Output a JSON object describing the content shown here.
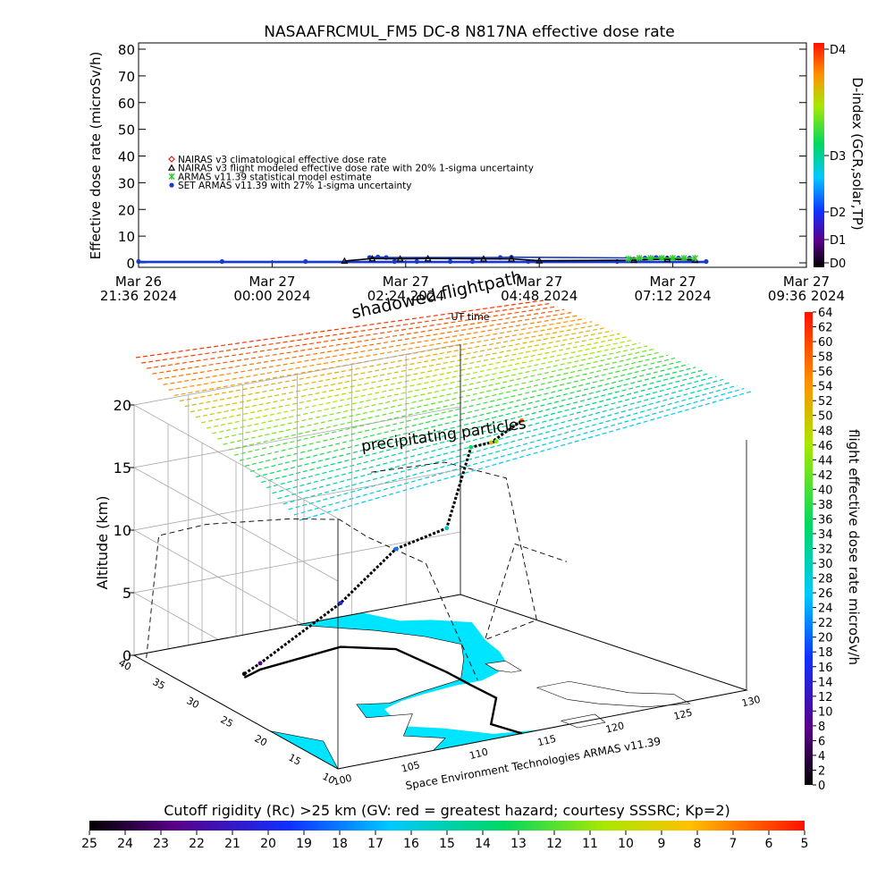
{
  "title": "NASAAFRCMUL_FM5 DC-8   N817NA effective dose rate",
  "chart_data": [
    {
      "type": "line",
      "ylabel": "Effective dose rate (microSv/h)",
      "ylim": [
        0,
        80
      ],
      "yticks": [
        0,
        10,
        20,
        30,
        40,
        50,
        60,
        70,
        80
      ],
      "x_ticks": [
        {
          "l1": "Mar 26",
          "l2": "21:36 2024"
        },
        {
          "l1": "Mar 27",
          "l2": "00:00 2024"
        },
        {
          "l1": "Mar 27",
          "l2": "02:24 2024"
        },
        {
          "l1": "Mar 27",
          "l2": "04:48 2024"
        },
        {
          "l1": "Mar 27",
          "l2": "07:12 2024"
        },
        {
          "l1": "Mar 27",
          "l2": "09:36 2024"
        }
      ],
      "x_hours": [
        0,
        2.4,
        4.8,
        7.2,
        9.6,
        12.0
      ],
      "legend": [
        {
          "label": "NAIRAS v3 climatological effective dose rate",
          "marker": "diamond",
          "color": "#d42020"
        },
        {
          "label": "NAIRAS v3 flight modeled effective dose rate with 20% 1-sigma uncertainty",
          "marker": "triangle",
          "color": "#000000"
        },
        {
          "label": "ARMAS v11.39 statistical model estimate",
          "marker": "asterisk",
          "color": "#33cc33"
        },
        {
          "label": "SET ARMAS v11.39 with 27% 1-sigma uncertainty",
          "marker": "circle",
          "color": "#1a3acc"
        }
      ],
      "series": [
        {
          "marker": "circle",
          "color": "#1a3acc",
          "x": [
            0.0,
            1.5,
            3.0,
            4.6,
            5.0,
            5.6,
            6.0,
            7.0,
            8.6,
            10.2
          ],
          "y": [
            0.5,
            0.5,
            0.5,
            0.5,
            0.5,
            0.5,
            0.5,
            0.5,
            0.5,
            0.5
          ]
        },
        {
          "marker": "circle",
          "color": "#1a3acc",
          "x": [
            4.15,
            4.3,
            4.45,
            6.5,
            6.7,
            9.1,
            9.3,
            9.5,
            9.7,
            9.9
          ],
          "y": [
            2.0,
            2.2,
            2.0,
            2.0,
            2.1,
            1.8,
            2.0,
            1.8,
            1.8,
            1.8
          ]
        },
        {
          "marker": "triangle",
          "color": "#000000",
          "x": [
            3.7,
            4.2,
            4.7,
            5.2,
            6.2,
            6.7,
            7.2,
            8.9,
            9.5,
            10.0
          ],
          "y": [
            0.7,
            1.6,
            1.5,
            1.6,
            1.5,
            1.5,
            0.8,
            1.0,
            1.4,
            1.0
          ]
        },
        {
          "marker": "asterisk",
          "color": "#33cc33",
          "x": [
            8.8,
            9.0,
            9.2,
            9.4,
            9.6,
            9.8,
            10.0
          ],
          "y": [
            1.5,
            1.8,
            1.8,
            1.8,
            1.8,
            1.8,
            1.8
          ]
        }
      ],
      "right_axis": {
        "label": "D-index (GCR,solar,TP)",
        "ticks": [
          "D0",
          "D1",
          "D2",
          "D3",
          "D4"
        ]
      }
    },
    {
      "type": "scatter",
      "zlabel": "Altitude (km)",
      "zlim": [
        0,
        20
      ],
      "zticks": [
        0,
        5,
        10,
        15,
        20
      ],
      "lat_ticks": [
        10,
        15,
        20,
        25,
        30,
        35,
        40
      ],
      "lon_ticks": [
        100,
        105,
        110,
        115,
        120,
        125,
        130
      ],
      "annotations": {
        "top": "shadowed flightpath",
        "ut": "UT time",
        "layer": "precipitating particles",
        "credit": "Space Environment Technologies ARMAS v11.39"
      },
      "route": [
        {
          "lon": 104.5,
          "lat": 31.5
        },
        {
          "lon": 106.5,
          "lat": 32.5
        },
        {
          "lon": 114.5,
          "lat": 34.0
        },
        {
          "lon": 117.5,
          "lat": 31.5
        },
        {
          "lon": 117.2,
          "lat": 25.0
        },
        {
          "lon": 116.8,
          "lat": 21.5
        },
        {
          "lon": 116.5,
          "lat": 18.0
        },
        {
          "lon": 113.0,
          "lat": 13.0
        },
        {
          "lon": 113.5,
          "lat": 10.0
        }
      ],
      "flight_altitude_km": [
        0.3,
        0.5,
        3.5,
        8.0,
        11.5,
        19.0,
        20.5,
        22.5,
        25.0
      ],
      "colorbar": {
        "label": "flight effective dose rate microSv/h",
        "min": 0,
        "max": 64,
        "ticks": [
          0,
          2,
          4,
          6,
          8,
          10,
          12,
          14,
          16,
          18,
          20,
          22,
          24,
          26,
          28,
          30,
          32,
          34,
          36,
          38,
          40,
          42,
          44,
          46,
          48,
          50,
          52,
          54,
          56,
          58,
          60,
          62,
          64
        ]
      }
    }
  ],
  "cutoff_bar": {
    "label": "Cutoff rigidity (Rc) >25 km (GV: red = greatest hazard; courtesy SSSRC; Kp=2)",
    "ticks": [
      25,
      24,
      23,
      22,
      21,
      20,
      19,
      18,
      17,
      16,
      15,
      14,
      13,
      12,
      11,
      10,
      9,
      8,
      7,
      6,
      5
    ]
  },
  "colors": {
    "sea": "#00e5ff",
    "land": "#ffffff",
    "wire": "#a8a8a8",
    "route": "#000000"
  }
}
